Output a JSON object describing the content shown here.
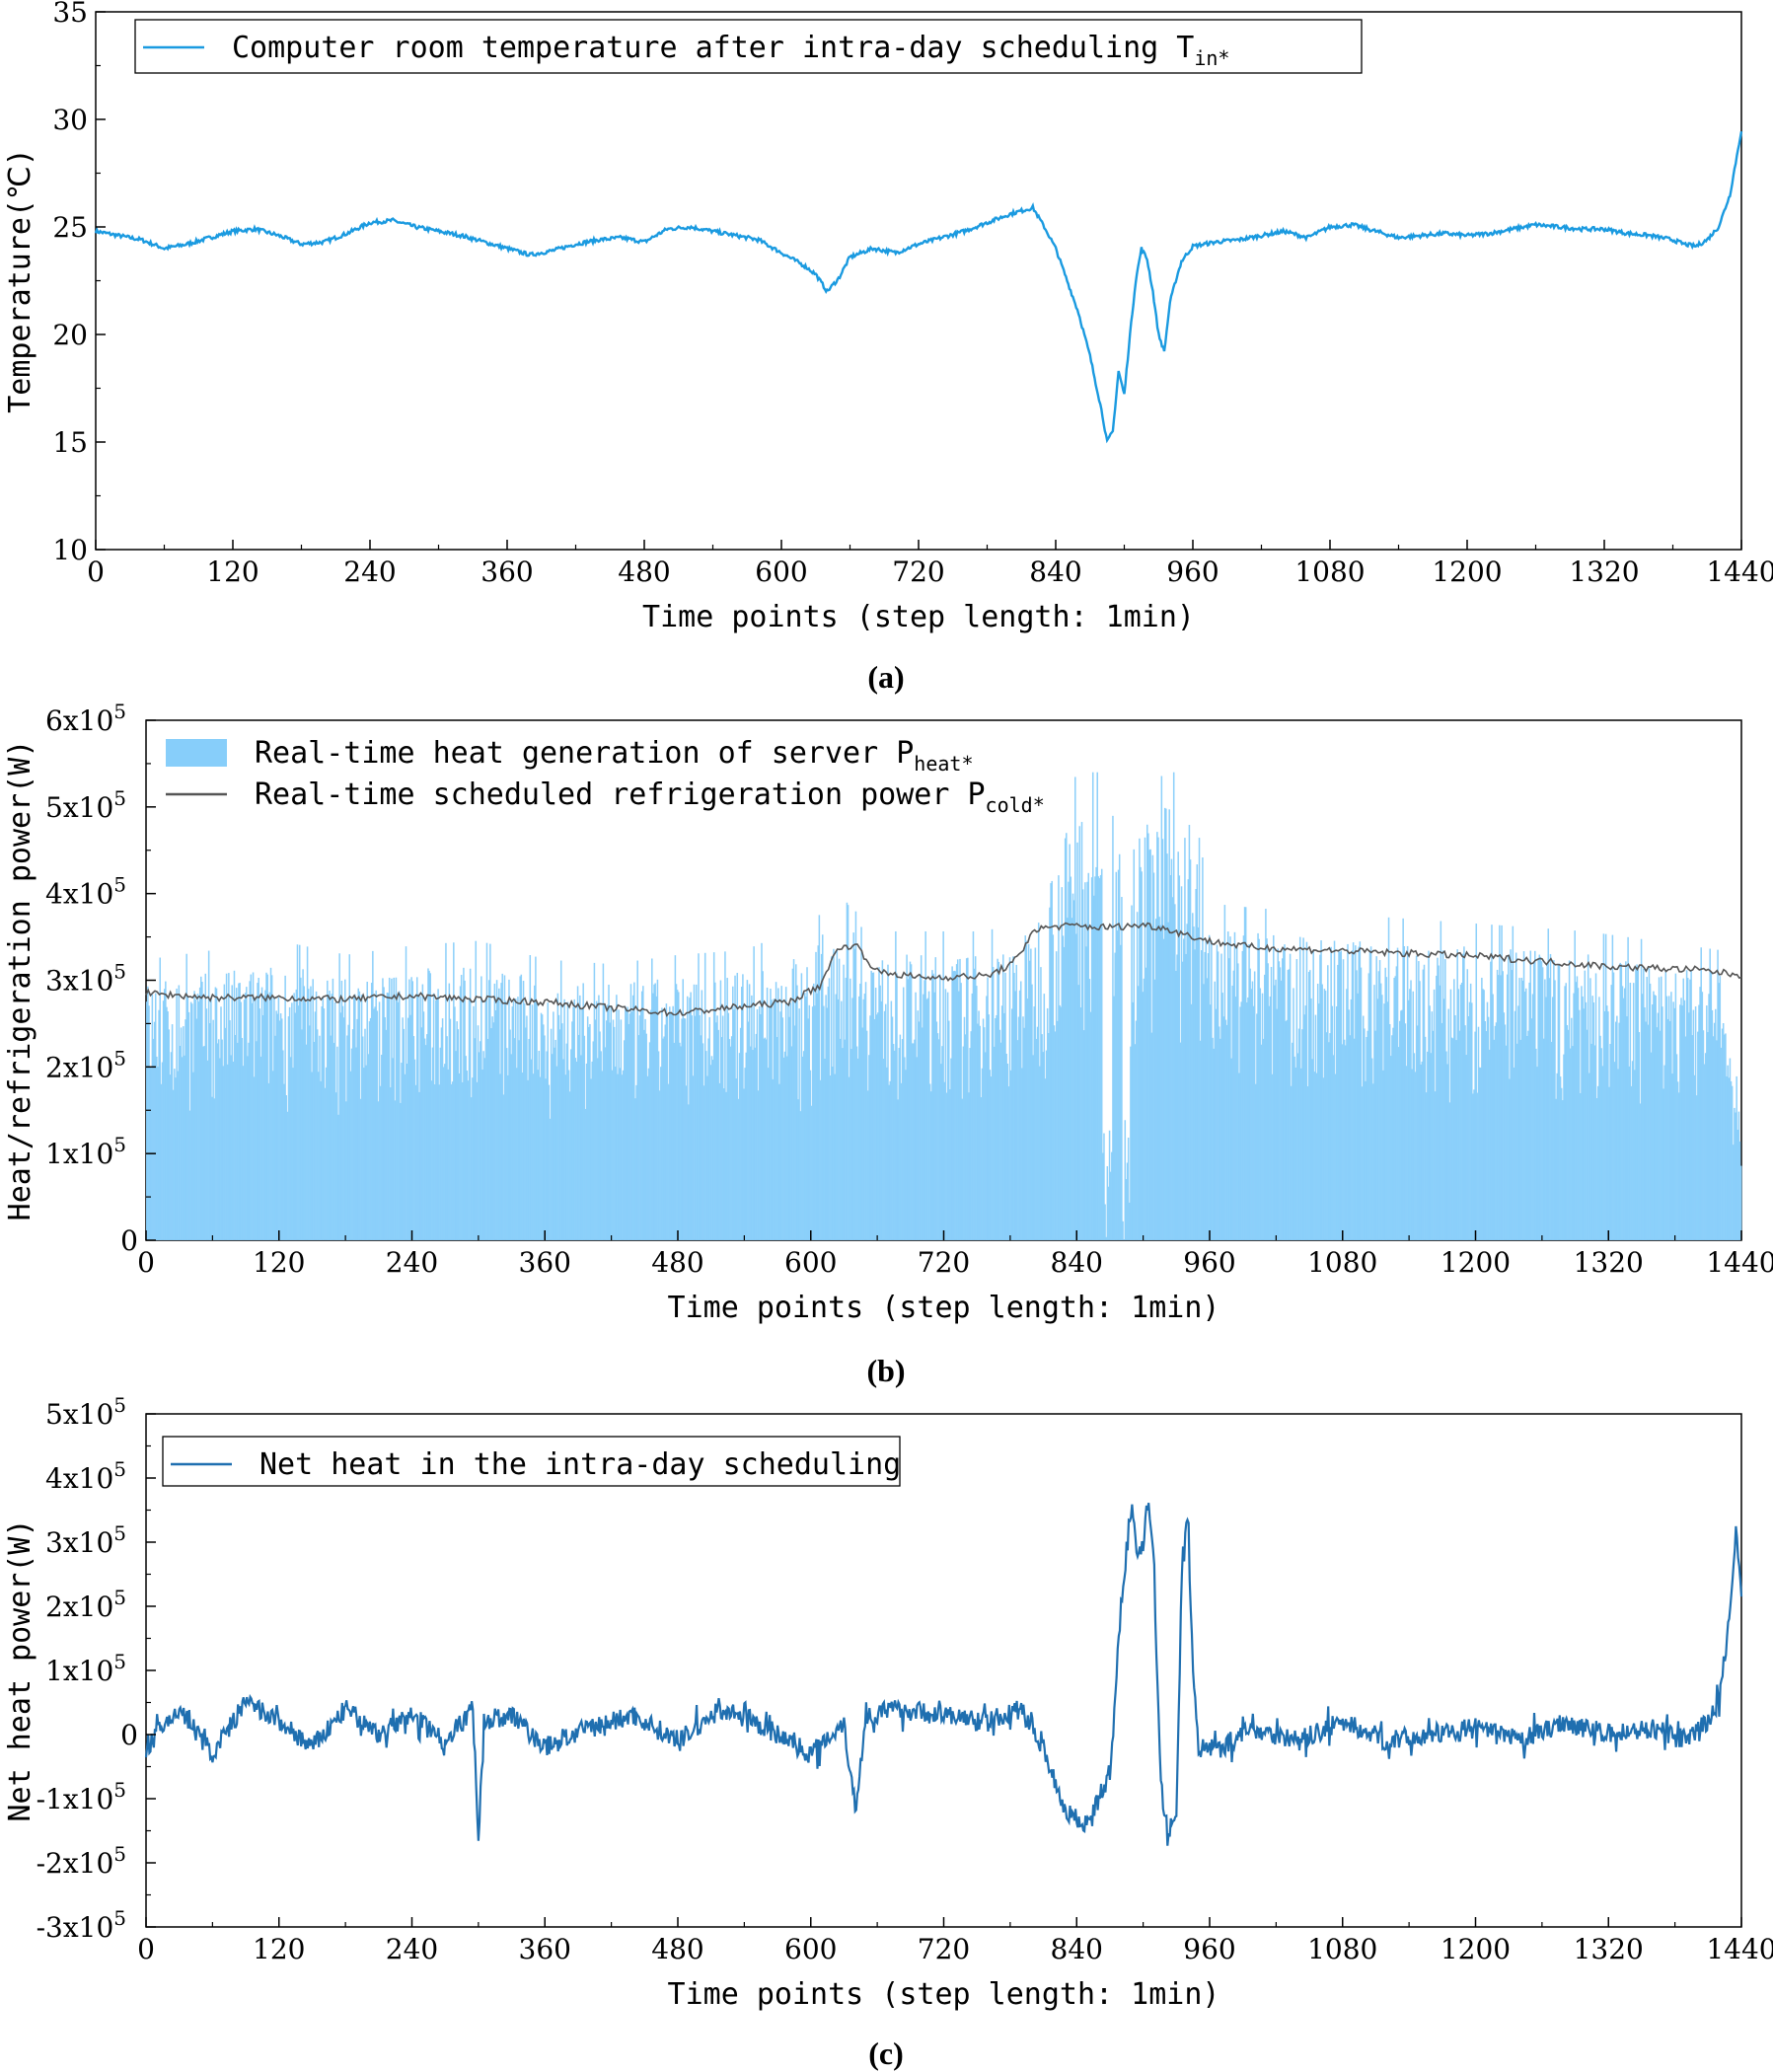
{
  "chart_data": [
    {
      "type": "line",
      "panel": "a",
      "caption": "a",
      "xlabel": "Time points (step length: 1min)",
      "ylabel": "Temperature(℃)",
      "xlim": [
        0,
        1440
      ],
      "ylim": [
        10,
        35
      ],
      "xticks": [
        0,
        120,
        240,
        360,
        480,
        600,
        720,
        840,
        960,
        1080,
        1200,
        1320,
        1440
      ],
      "yticks": [
        10,
        15,
        20,
        25,
        30,
        35
      ],
      "ytick_labels": [
        "10",
        "15",
        "20",
        "25",
        "30",
        "35"
      ],
      "legend": [
        {
          "name": "Computer room temperature after intra-day scheduling T",
          "sub": "in*",
          "color": "#1a9ae0"
        }
      ],
      "series": [
        {
          "name": "Tin*",
          "color": "#1a9ae0",
          "x": [
            0,
            20,
            40,
            60,
            80,
            100,
            120,
            140,
            160,
            180,
            200,
            220,
            240,
            260,
            280,
            300,
            320,
            340,
            360,
            380,
            400,
            420,
            440,
            460,
            480,
            500,
            520,
            540,
            560,
            580,
            600,
            610,
            620,
            630,
            640,
            650,
            660,
            680,
            700,
            720,
            740,
            760,
            780,
            800,
            820,
            830,
            840,
            850,
            860,
            870,
            880,
            885,
            890,
            895,
            900,
            905,
            910,
            915,
            920,
            925,
            930,
            935,
            940,
            945,
            950,
            960,
            980,
            1000,
            1020,
            1040,
            1060,
            1080,
            1100,
            1120,
            1140,
            1160,
            1180,
            1200,
            1220,
            1240,
            1260,
            1280,
            1300,
            1320,
            1340,
            1360,
            1380,
            1390,
            1400,
            1410,
            1420,
            1430,
            1440
          ],
          "values": [
            24.8,
            24.6,
            24.4,
            24.0,
            24.2,
            24.5,
            24.8,
            24.9,
            24.6,
            24.2,
            24.3,
            24.7,
            25.2,
            25.3,
            25.0,
            24.8,
            24.6,
            24.3,
            24.0,
            23.7,
            23.9,
            24.2,
            24.4,
            24.5,
            24.3,
            24.9,
            25.0,
            24.8,
            24.6,
            24.4,
            23.8,
            23.5,
            23.2,
            22.8,
            22.0,
            22.6,
            23.6,
            24.0,
            23.8,
            24.2,
            24.5,
            24.8,
            25.2,
            25.6,
            25.9,
            25.0,
            24.0,
            22.5,
            21.0,
            19.0,
            16.5,
            15.0,
            15.5,
            18.3,
            17.2,
            20.0,
            22.5,
            24.0,
            23.5,
            22.0,
            20.0,
            19.2,
            21.5,
            22.5,
            23.4,
            24.1,
            24.3,
            24.4,
            24.6,
            24.8,
            24.5,
            25.0,
            25.1,
            24.8,
            24.5,
            24.6,
            24.7,
            24.6,
            24.7,
            24.9,
            25.1,
            25.0,
            24.9,
            24.9,
            24.7,
            24.6,
            24.4,
            24.2,
            24.1,
            24.4,
            25.0,
            26.5,
            29.5
          ]
        }
      ]
    },
    {
      "type": "bar",
      "panel": "b",
      "caption": "b",
      "xlabel": "Time points (step length: 1min)",
      "ylabel": "Heat/refrigeration power(W)",
      "xlim": [
        0,
        1440
      ],
      "ylim": [
        0,
        600000
      ],
      "xticks": [
        0,
        120,
        240,
        360,
        480,
        600,
        720,
        840,
        960,
        1080,
        1200,
        1320,
        1440
      ],
      "yticks": [
        0,
        100000,
        200000,
        300000,
        400000,
        500000,
        600000
      ],
      "ytick_labels": [
        "0",
        "1x10",
        "2x10",
        "3x10",
        "4x10",
        "5x10",
        "6x10"
      ],
      "ytick_exp": "5",
      "legend": [
        {
          "name": "Real-time heat generation of server P",
          "sub": "heat*",
          "color": "#87cefa"
        },
        {
          "name": "Real-time scheduled refrigeration power P",
          "sub": "cold*",
          "color": "#555555"
        }
      ],
      "series": [
        {
          "name": "Pheat* (envelope)",
          "color": "#87cefa",
          "x": [
            0,
            60,
            120,
            180,
            240,
            300,
            360,
            420,
            480,
            540,
            580,
            600,
            620,
            640,
            660,
            700,
            760,
            800,
            820,
            840,
            860,
            880,
            900,
            920,
            940,
            960,
            1000,
            1060,
            1120,
            1180,
            1240,
            1300,
            1360,
            1420,
            1440
          ],
          "values": [
            300000,
            310000,
            320000,
            305000,
            315000,
            320000,
            300000,
            295000,
            305000,
            310000,
            330000,
            330000,
            380000,
            400000,
            330000,
            330000,
            330000,
            360000,
            450000,
            500000,
            500000,
            500000,
            480000,
            500000,
            500000,
            360000,
            355000,
            350000,
            345000,
            340000,
            335000,
            330000,
            320000,
            310000,
            150000
          ]
        },
        {
          "name": "Pcold*",
          "color": "#555555",
          "x": [
            0,
            60,
            120,
            180,
            240,
            300,
            360,
            420,
            480,
            540,
            580,
            600,
            610,
            620,
            630,
            640,
            650,
            660,
            700,
            760,
            780,
            790,
            800,
            820,
            840,
            860,
            880,
            900,
            920,
            940,
            960,
            1000,
            1040,
            1080,
            1120,
            1160,
            1200,
            1240,
            1280,
            1320,
            1360,
            1400,
            1440
          ],
          "values": [
            285000,
            280000,
            280000,
            278000,
            282000,
            278000,
            275000,
            268000,
            262000,
            270000,
            275000,
            288000,
            295000,
            330000,
            338000,
            342000,
            325000,
            310000,
            303000,
            305000,
            318000,
            330000,
            358000,
            362000,
            363000,
            361000,
            362000,
            364000,
            360000,
            352000,
            345000,
            338000,
            336000,
            334000,
            332000,
            330000,
            328000,
            324000,
            320000,
            316000,
            314000,
            312000,
            306000
          ]
        }
      ]
    },
    {
      "type": "line",
      "panel": "c",
      "caption": "c",
      "xlabel": "Time points (step length: 1min)",
      "ylabel": "Net heat power(W)",
      "xlim": [
        0,
        1440
      ],
      "ylim": [
        -300000,
        500000
      ],
      "xticks": [
        0,
        120,
        240,
        360,
        480,
        600,
        720,
        840,
        960,
        1080,
        1200,
        1320,
        1440
      ],
      "yticks": [
        -300000,
        -200000,
        -100000,
        0,
        100000,
        200000,
        300000,
        400000,
        500000
      ],
      "ytick_labels": [
        "-3x10",
        "-2x10",
        "-1x10",
        "0",
        "1x10",
        "2x10",
        "3x10",
        "4x10",
        "5x10"
      ],
      "ytick_exp": "5",
      "legend": [
        {
          "name": "Net heat in the intra-day scheduling",
          "sub": "",
          "color": "#1f6fb0"
        }
      ],
      "series": [
        {
          "name": "Net heat",
          "color": "#1f6fb0",
          "x": [
            0,
            30,
            60,
            90,
            120,
            150,
            180,
            210,
            240,
            270,
            295,
            300,
            305,
            330,
            360,
            400,
            440,
            480,
            520,
            560,
            600,
            630,
            640,
            650,
            680,
            720,
            760,
            790,
            810,
            830,
            850,
            870,
            880,
            890,
            895,
            900,
            905,
            910,
            915,
            920,
            925,
            930,
            935,
            940,
            945,
            950,
            970,
            1000,
            1040,
            1080,
            1120,
            1160,
            1200,
            1240,
            1280,
            1320,
            1360,
            1390,
            1410,
            1420,
            1425,
            1430,
            1435,
            1440
          ],
          "values": [
            -20000,
            40000,
            -30000,
            50000,
            20000,
            -20000,
            40000,
            0,
            30000,
            -10000,
            40000,
            -160000,
            20000,
            30000,
            -20000,
            10000,
            30000,
            -10000,
            40000,
            10000,
            -30000,
            20000,
            -120000,
            30000,
            40000,
            30000,
            20000,
            40000,
            -20000,
            -120000,
            -140000,
            -60000,
            200000,
            370000,
            280000,
            300000,
            370000,
            250000,
            -40000,
            -140000,
            -145000,
            -140000,
            260000,
            350000,
            100000,
            -20000,
            -20000,
            10000,
            -10000,
            20000,
            -10000,
            0,
            10000,
            -10000,
            20000,
            0,
            10000,
            -10000,
            20000,
            60000,
            120000,
            200000,
            310000,
            230000
          ]
        }
      ]
    }
  ]
}
